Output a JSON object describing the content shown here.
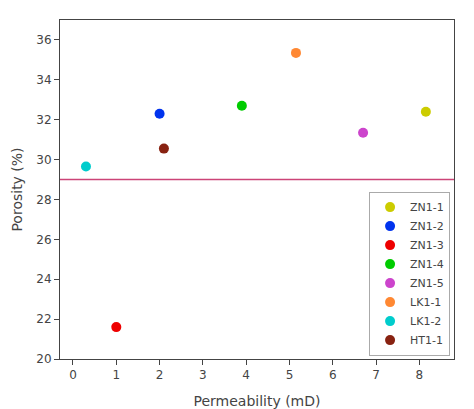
{
  "chart_data": {
    "type": "scatter",
    "xlabel": "Permeability (mD)",
    "ylabel": "Porosity (%)",
    "series": [
      {
        "name": "ZN1-1",
        "color": "#cccc00",
        "x": [
          8.15
        ],
        "values": [
          32.4
        ]
      },
      {
        "name": "ZN1-2",
        "color": "#0033ee",
        "x": [
          2.0
        ],
        "values": [
          32.3
        ]
      },
      {
        "name": "ZN1-3",
        "color": "#ee0000",
        "x": [
          1.0
        ],
        "values": [
          21.6
        ]
      },
      {
        "name": "ZN1-4",
        "color": "#00cc00",
        "x": [
          3.9
        ],
        "values": [
          32.7
        ]
      },
      {
        "name": "ZN1-5",
        "color": "#cc44cc",
        "x": [
          6.7
        ],
        "values": [
          31.35
        ]
      },
      {
        "name": "LK1-1",
        "color": "#ff8833",
        "x": [
          5.15
        ],
        "values": [
          35.35
        ]
      },
      {
        "name": "LK1-2",
        "color": "#00cccc",
        "x": [
          0.3
        ],
        "values": [
          29.65
        ]
      },
      {
        "name": "HT1-1",
        "color": "#882211",
        "x": [
          2.1
        ],
        "values": [
          30.55
        ]
      }
    ],
    "reference_line": {
      "y": 29.0,
      "color": "#cc4477"
    },
    "xlim": [
      -0.3,
      8.8
    ],
    "ylim": [
      20,
      37
    ],
    "xticks": [
      0,
      1,
      2,
      3,
      4,
      5,
      6,
      7,
      8
    ],
    "yticks": [
      20,
      22,
      24,
      26,
      28,
      30,
      32,
      34,
      36
    ],
    "marker": "circle",
    "grid": false,
    "legend": "lower right"
  }
}
